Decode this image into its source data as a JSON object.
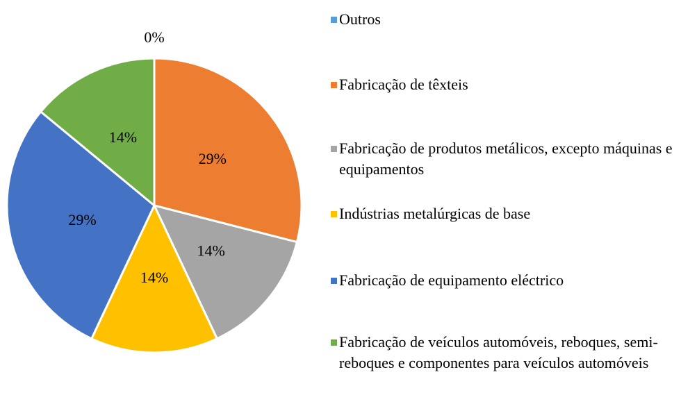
{
  "chart_data": {
    "type": "pie",
    "categories": [
      "Outros",
      "Fabricação de têxteis",
      "Fabricação de produtos metálicos, excepto máquinas e equipamentos",
      "Indústrias metalúrgicas de base",
      "Fabricação de equipamento eléctrico",
      "Fabricação de veículos automóveis, reboques, semi-reboques e componentes para veículos automóveis"
    ],
    "values": [
      0,
      29,
      14,
      14,
      29,
      14
    ],
    "value_labels": [
      "0%",
      "29%",
      "14%",
      "14%",
      "29%",
      "14%"
    ],
    "colors": [
      "#5b9bd5",
      "#ed7d31",
      "#a5a5a5",
      "#ffc000",
      "#4472c4",
      "#70ad47"
    ],
    "legend": "right"
  }
}
